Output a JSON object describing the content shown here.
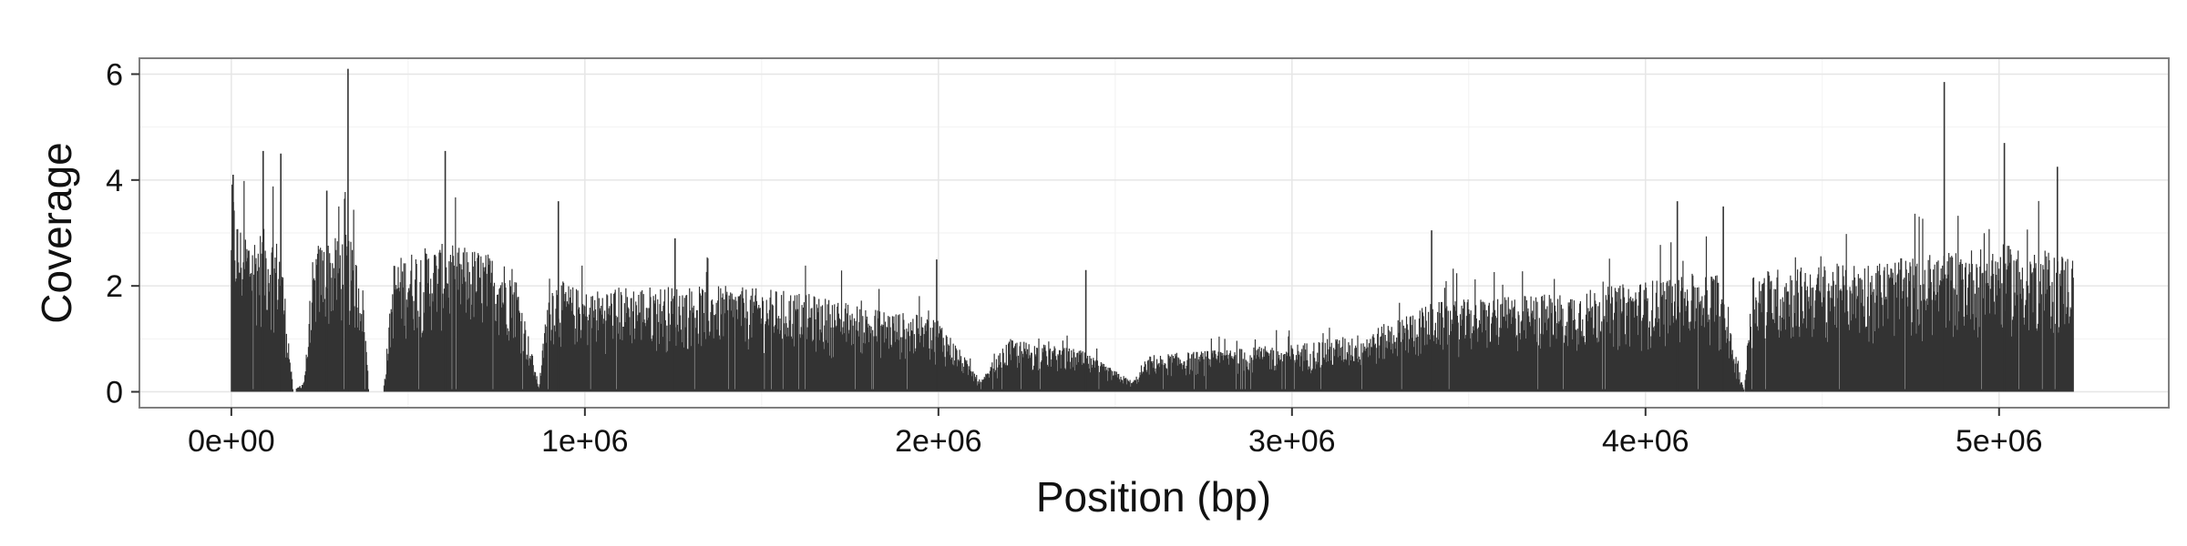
{
  "chart_data": {
    "type": "bar",
    "title": "",
    "xlabel": "Position (bp)",
    "ylabel": "Coverage",
    "xlim": [
      -260000,
      5480000
    ],
    "ylim": [
      -0.3,
      6.3
    ],
    "x_ticks": [
      0,
      1000000,
      2000000,
      3000000,
      4000000,
      5000000
    ],
    "x_tick_labels": [
      "0e+00",
      "1e+06",
      "2e+06",
      "3e+06",
      "4e+06",
      "5e+06"
    ],
    "y_ticks": [
      0,
      2,
      4,
      6
    ],
    "y_tick_labels": [
      "0",
      "2",
      "4",
      "6"
    ],
    "grid": true,
    "legend": "none",
    "bar_color": "#333333",
    "profile_x": [
      0,
      20000,
      60000,
      100000,
      140000,
      160000,
      175000,
      205000,
      240000,
      290000,
      330000,
      370000,
      390000,
      395000,
      430000,
      460000,
      520000,
      600000,
      700000,
      800000,
      870000,
      900000,
      1000000,
      1100000,
      1200000,
      1400000,
      1600000,
      1800000,
      2000000,
      2120000,
      2200000,
      2400000,
      2550000,
      2600000,
      2800000,
      3000000,
      3200000,
      3400000,
      3600000,
      3800000,
      4000000,
      4200000,
      4280000,
      4300000,
      4500000,
      4700000,
      4800000,
      4900000,
      5000000,
      5100000,
      5210000
    ],
    "profile_coverage": [
      4.0,
      3.2,
      3.0,
      3.1,
      2.8,
      1.2,
      0.0,
      0.2,
      2.8,
      2.9,
      3.0,
      2.2,
      0.0,
      0.0,
      0.0,
      2.5,
      2.7,
      2.8,
      2.7,
      2.4,
      0.1,
      2.2,
      1.9,
      2.0,
      2.0,
      2.0,
      1.9,
      1.6,
      1.4,
      0.2,
      1.0,
      0.8,
      0.2,
      0.7,
      0.8,
      0.9,
      1.1,
      1.7,
      1.8,
      1.9,
      2.1,
      2.3,
      0.0,
      2.3,
      2.4,
      2.5,
      2.6,
      2.7,
      2.8,
      2.7,
      2.6
    ],
    "peaks": [
      {
        "x": 5000,
        "y": 4.1
      },
      {
        "x": 90000,
        "y": 4.55
      },
      {
        "x": 140000,
        "y": 4.5
      },
      {
        "x": 270000,
        "y": 3.8
      },
      {
        "x": 330000,
        "y": 6.1
      },
      {
        "x": 605000,
        "y": 4.55
      },
      {
        "x": 925000,
        "y": 3.6
      },
      {
        "x": 1255000,
        "y": 2.9
      },
      {
        "x": 1995000,
        "y": 2.5
      },
      {
        "x": 2417000,
        "y": 2.3
      },
      {
        "x": 3395000,
        "y": 3.05
      },
      {
        "x": 4090000,
        "y": 3.6
      },
      {
        "x": 4220000,
        "y": 3.5
      },
      {
        "x": 4845000,
        "y": 5.85
      },
      {
        "x": 5015000,
        "y": 4.7
      },
      {
        "x": 5165000,
        "y": 4.25
      }
    ]
  }
}
